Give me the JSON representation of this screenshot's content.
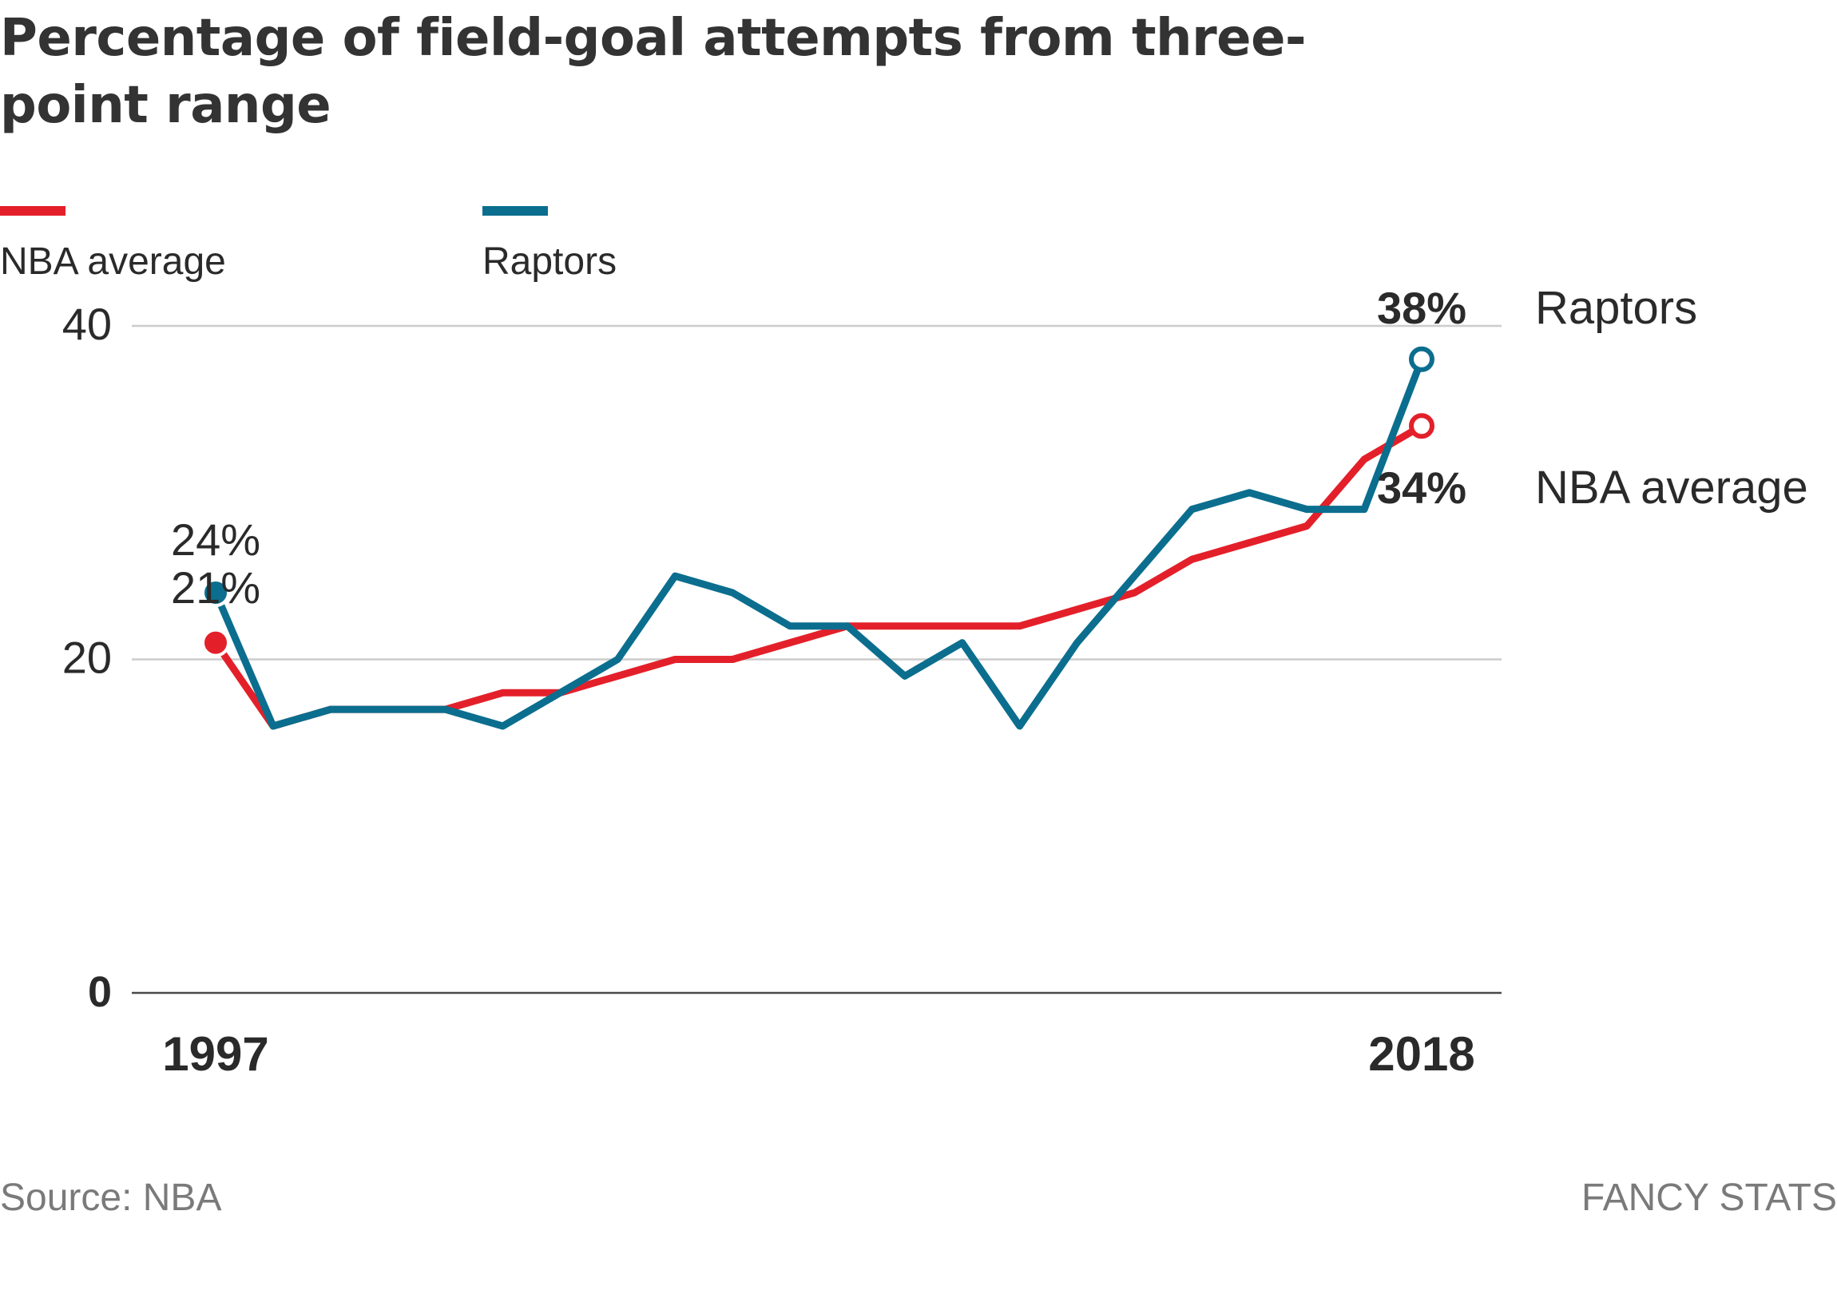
{
  "title": "Percentage of field-goal attempts from three-point range",
  "legend": [
    {
      "label": "NBA average",
      "color": "#e3202a"
    },
    {
      "label": "Raptors",
      "color": "#0b6e8e"
    }
  ],
  "chart_data": {
    "type": "line",
    "title": "Percentage of field-goal attempts from three-point range",
    "x": [
      1997,
      1998,
      1999,
      2000,
      2001,
      2002,
      2003,
      2004,
      2005,
      2006,
      2007,
      2008,
      2009,
      2010,
      2011,
      2012,
      2013,
      2014,
      2015,
      2016,
      2017,
      2018
    ],
    "x_tick_labels": [
      "1997",
      "2018"
    ],
    "y_ticks": [
      0,
      20,
      40
    ],
    "y_tick_labels": [
      "0",
      "20",
      "40"
    ],
    "ylim": [
      0,
      40
    ],
    "grid": true,
    "series": [
      {
        "name": "NBA average",
        "color": "#e3202a",
        "values": [
          21,
          16,
          17,
          17,
          17,
          18,
          18,
          19,
          20,
          20,
          21,
          22,
          22,
          22,
          22,
          23,
          24,
          26,
          27,
          28,
          32,
          34
        ],
        "start_label": "21%",
        "end_label": "34%",
        "end_name": "NBA average"
      },
      {
        "name": "Raptors",
        "color": "#0b6e8e",
        "values": [
          24,
          16,
          17,
          17,
          17,
          16,
          18,
          20,
          25,
          24,
          22,
          22,
          19,
          21,
          16,
          21,
          25,
          29,
          30,
          29,
          29,
          38
        ],
        "start_label": "24%",
        "end_label": "38%",
        "end_name": "Raptors"
      }
    ]
  },
  "footer": {
    "source": "Source: NBA",
    "brand": "FANCY STATS"
  }
}
